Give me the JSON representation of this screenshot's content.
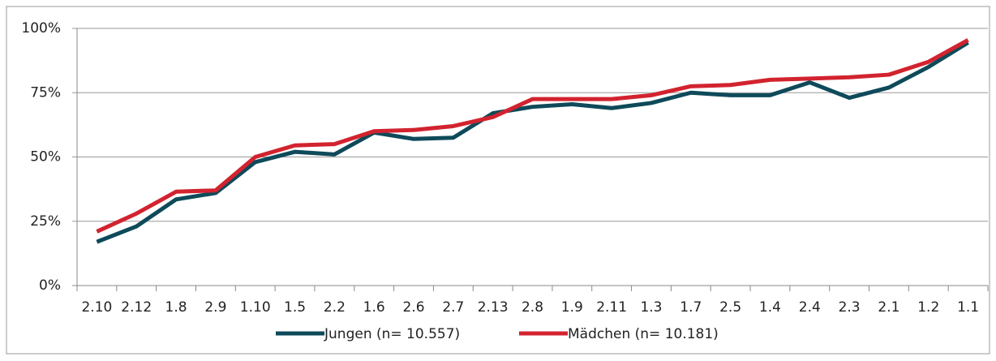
{
  "chart_data": {
    "type": "line",
    "categories": [
      "2.10",
      "2.12",
      "1.8",
      "2.9",
      "1.10",
      "1.5",
      "2.2",
      "1.6",
      "2.6",
      "2.7",
      "2.13",
      "2.8",
      "1.9",
      "2.11",
      "1.3",
      "1.7",
      "2.5",
      "1.4",
      "2.4",
      "2.3",
      "2.1",
      "1.2",
      "1.1"
    ],
    "series": [
      {
        "name": "Jungen (n= 10.557)",
        "color": "#0e4a5a",
        "values": [
          17,
          23,
          33.5,
          36,
          48,
          52,
          51,
          59.5,
          57,
          57.5,
          67,
          69.5,
          70.5,
          69,
          71,
          75,
          74,
          74,
          79,
          73,
          77,
          85,
          94.5
        ]
      },
      {
        "name": "Mädchen (n= 10.181)",
        "color": "#d2232f",
        "values": [
          21,
          28,
          36.5,
          37,
          50,
          54.5,
          55,
          60,
          60.5,
          62,
          65.5,
          72.5,
          72.5,
          72.5,
          74,
          77.5,
          78,
          80,
          80.5,
          81,
          82,
          87,
          95.5
        ]
      }
    ],
    "ylim": [
      0,
      100
    ],
    "yticks": [
      {
        "value": 0,
        "label": "0%"
      },
      {
        "value": 25,
        "label": "25%"
      },
      {
        "value": 50,
        "label": "50%"
      },
      {
        "value": 75,
        "label": "75%"
      },
      {
        "value": 100,
        "label": "100%"
      }
    ],
    "grid": true,
    "legend": "bottom"
  }
}
